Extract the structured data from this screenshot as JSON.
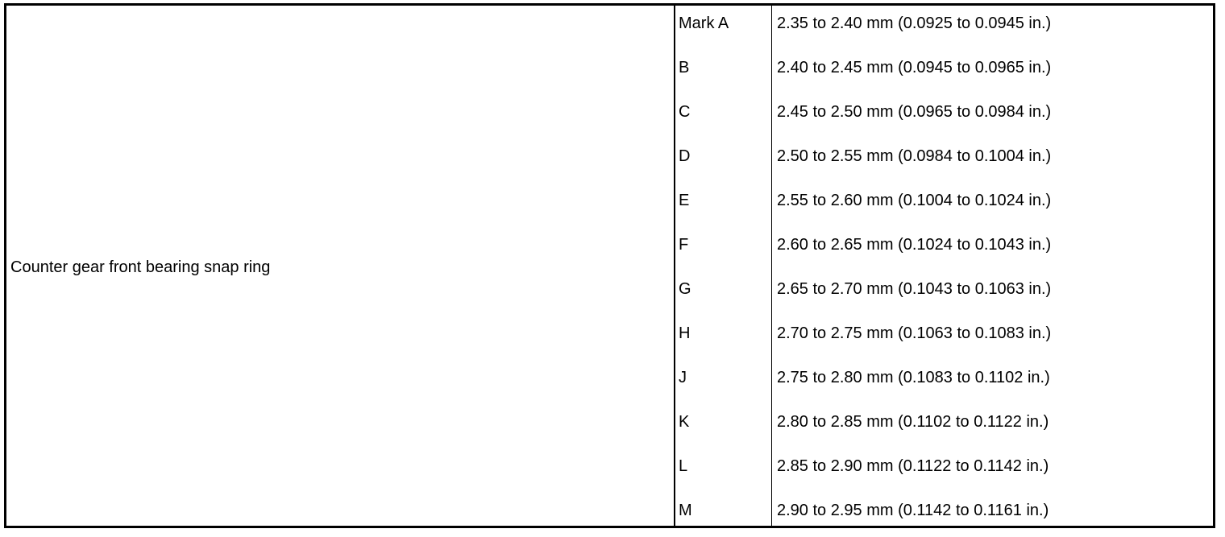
{
  "component": "Counter gear front bearing snap ring",
  "rows": [
    {
      "mark": "Mark A",
      "spec": "2.35 to 2.40 mm (0.0925 to 0.0945 in.)"
    },
    {
      "mark": "B",
      "spec": "2.40 to 2.45 mm (0.0945 to 0.0965 in.)"
    },
    {
      "mark": "C",
      "spec": "2.45 to 2.50 mm (0.0965 to 0.0984 in.)"
    },
    {
      "mark": "D",
      "spec": "2.50 to 2.55 mm (0.0984 to 0.1004 in.)"
    },
    {
      "mark": "E",
      "spec": "2.55 to 2.60 mm (0.1004 to 0.1024 in.)"
    },
    {
      "mark": "F",
      "spec": "2.60 to 2.65 mm (0.1024 to 0.1043 in.)"
    },
    {
      "mark": "G",
      "spec": "2.65 to 2.70 mm (0.1043 to 0.1063 in.)"
    },
    {
      "mark": "H",
      "spec": "2.70 to 2.75 mm (0.1063 to 0.1083 in.)"
    },
    {
      "mark": "J",
      "spec": "2.75 to 2.80 mm (0.1083 to 0.1102 in.)"
    },
    {
      "mark": "K",
      "spec": "2.80 to 2.85 mm (0.1102 to 0.1122 in.)"
    },
    {
      "mark": "L",
      "spec": "2.85 to 2.90 mm (0.1122 to 0.1142 in.)"
    },
    {
      "mark": "M",
      "spec": "2.90 to 2.95 mm (0.1142 to 0.1161 in.)"
    }
  ]
}
